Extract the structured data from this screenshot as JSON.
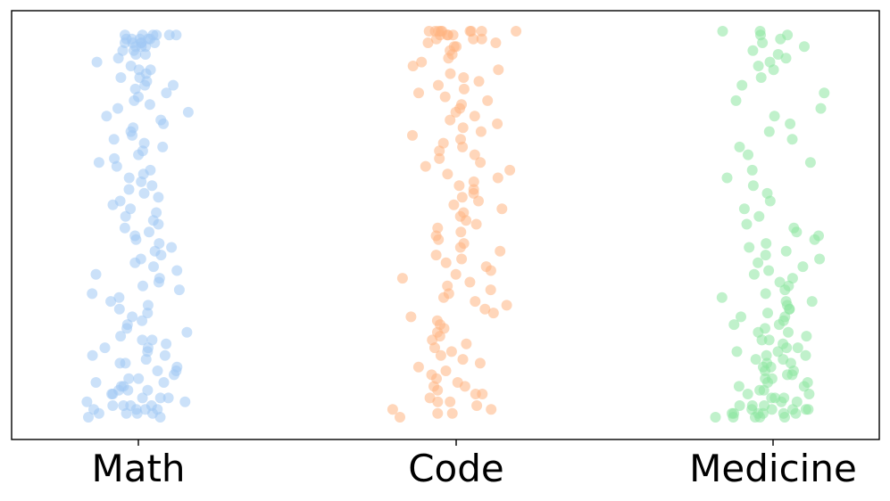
{
  "chart_data": {
    "type": "scatter",
    "style": "strip plot (jittered), no y-axis labels",
    "categories": [
      "Math",
      "Code",
      "Medicine"
    ],
    "ylim": [
      0,
      1
    ],
    "yaxis_visible": false,
    "grid": false,
    "legend": "none",
    "colors": {
      "Math": "#a1c9f4",
      "Code": "#ffb482",
      "Medicine": "#8de5a1"
    },
    "series": [
      {
        "category": "Math",
        "values": [
          0.99,
          0.99,
          0.98,
          0.99,
          0.97,
          0.98,
          0.99,
          0.96,
          0.97,
          0.98,
          0.95,
          0.97,
          0.99,
          0.98,
          0.96,
          0.94,
          0.97,
          0.98,
          0.99,
          0.95,
          0.93,
          0.92,
          0.96,
          0.97,
          0.91,
          0.9,
          0.94,
          0.89,
          0.88,
          0.87,
          0.9,
          0.86,
          0.85,
          0.84,
          0.88,
          0.83,
          0.82,
          0.86,
          0.8,
          0.79,
          0.81,
          0.78,
          0.77,
          0.76,
          0.75,
          0.74,
          0.73,
          0.72,
          0.71,
          0.7,
          0.69,
          0.68,
          0.67,
          0.66,
          0.65,
          0.64,
          0.63,
          0.62,
          0.61,
          0.6,
          0.59,
          0.58,
          0.57,
          0.56,
          0.55,
          0.54,
          0.53,
          0.52,
          0.51,
          0.5,
          0.49,
          0.48,
          0.47,
          0.46,
          0.45,
          0.44,
          0.43,
          0.42,
          0.41,
          0.4,
          0.39,
          0.38,
          0.37,
          0.36,
          0.35,
          0.34,
          0.33,
          0.32,
          0.31,
          0.3,
          0.29,
          0.28,
          0.27,
          0.26,
          0.25,
          0.24,
          0.23,
          0.22,
          0.21,
          0.2,
          0.19,
          0.18,
          0.17,
          0.16,
          0.15,
          0.14,
          0.13,
          0.12,
          0.11,
          0.1,
          0.09,
          0.08,
          0.07,
          0.06,
          0.05,
          0.04,
          0.03,
          0.03,
          0.02,
          0.02,
          0.01,
          0.01,
          0.0,
          0.01,
          0.02,
          0.03,
          0.04,
          0.05,
          0.06,
          0.07,
          0.08,
          0.09,
          0.1,
          0.12,
          0.14,
          0.16,
          0.18,
          0.2,
          0.02,
          0.01,
          0.0,
          0.03,
          0.05,
          0.07
        ]
      },
      {
        "category": "Code",
        "values": [
          1.0,
          1.0,
          1.0,
          0.99,
          1.0,
          1.0,
          0.99,
          0.98,
          1.0,
          1.0,
          0.99,
          0.98,
          0.97,
          1.0,
          0.99,
          0.96,
          0.98,
          0.95,
          1.0,
          0.97,
          0.94,
          0.93,
          0.96,
          0.92,
          0.91,
          0.9,
          0.89,
          0.88,
          0.87,
          0.86,
          0.85,
          0.84,
          0.83,
          0.82,
          0.81,
          0.8,
          0.79,
          0.78,
          0.77,
          0.76,
          0.75,
          0.74,
          0.73,
          0.72,
          0.71,
          0.7,
          0.69,
          0.68,
          0.67,
          0.66,
          0.65,
          0.64,
          0.63,
          0.62,
          0.61,
          0.6,
          0.59,
          0.58,
          0.57,
          0.56,
          0.55,
          0.54,
          0.53,
          0.52,
          0.51,
          0.5,
          0.49,
          0.48,
          0.47,
          0.46,
          0.45,
          0.44,
          0.43,
          0.42,
          0.41,
          0.4,
          0.39,
          0.38,
          0.37,
          0.36,
          0.35,
          0.34,
          0.33,
          0.32,
          0.31,
          0.3,
          0.29,
          0.28,
          0.27,
          0.26,
          0.25,
          0.24,
          0.23,
          0.22,
          0.21,
          0.2,
          0.19,
          0.18,
          0.17,
          0.16,
          0.15,
          0.14,
          0.13,
          0.12,
          0.11,
          0.1,
          0.09,
          0.08,
          0.07,
          0.06,
          0.05,
          0.04,
          0.03,
          0.02,
          0.01,
          0.0,
          0.01,
          0.02,
          0.04,
          0.06,
          0.08
        ]
      },
      {
        "category": "Medicine",
        "values": [
          1.0,
          0.99,
          1.0,
          0.98,
          0.97,
          0.96,
          0.99,
          0.95,
          0.94,
          0.93,
          0.92,
          0.91,
          0.9,
          0.88,
          0.86,
          0.84,
          0.82,
          0.8,
          0.78,
          0.76,
          0.74,
          0.72,
          0.7,
          0.68,
          0.66,
          0.64,
          0.62,
          0.6,
          0.58,
          0.56,
          0.54,
          0.52,
          0.5,
          0.49,
          0.48,
          0.47,
          0.46,
          0.45,
          0.44,
          0.43,
          0.42,
          0.41,
          0.4,
          0.39,
          0.38,
          0.37,
          0.36,
          0.35,
          0.34,
          0.33,
          0.32,
          0.31,
          0.3,
          0.29,
          0.28,
          0.27,
          0.26,
          0.25,
          0.24,
          0.23,
          0.22,
          0.21,
          0.2,
          0.19,
          0.18,
          0.17,
          0.16,
          0.15,
          0.14,
          0.13,
          0.12,
          0.11,
          0.1,
          0.09,
          0.08,
          0.07,
          0.06,
          0.05,
          0.04,
          0.03,
          0.02,
          0.02,
          0.01,
          0.01,
          0.0,
          0.0,
          0.01,
          0.02,
          0.03,
          0.04,
          0.05,
          0.06,
          0.07,
          0.08,
          0.09,
          0.1,
          0.11,
          0.12,
          0.13,
          0.14,
          0.15,
          0.16,
          0.17,
          0.18,
          0.2,
          0.22,
          0.24,
          0.26,
          0.28,
          0.3,
          0.01,
          0.0,
          0.02,
          0.03,
          0.05,
          0.0,
          0.01,
          0.02,
          0.0,
          0.01
        ]
      }
    ]
  }
}
